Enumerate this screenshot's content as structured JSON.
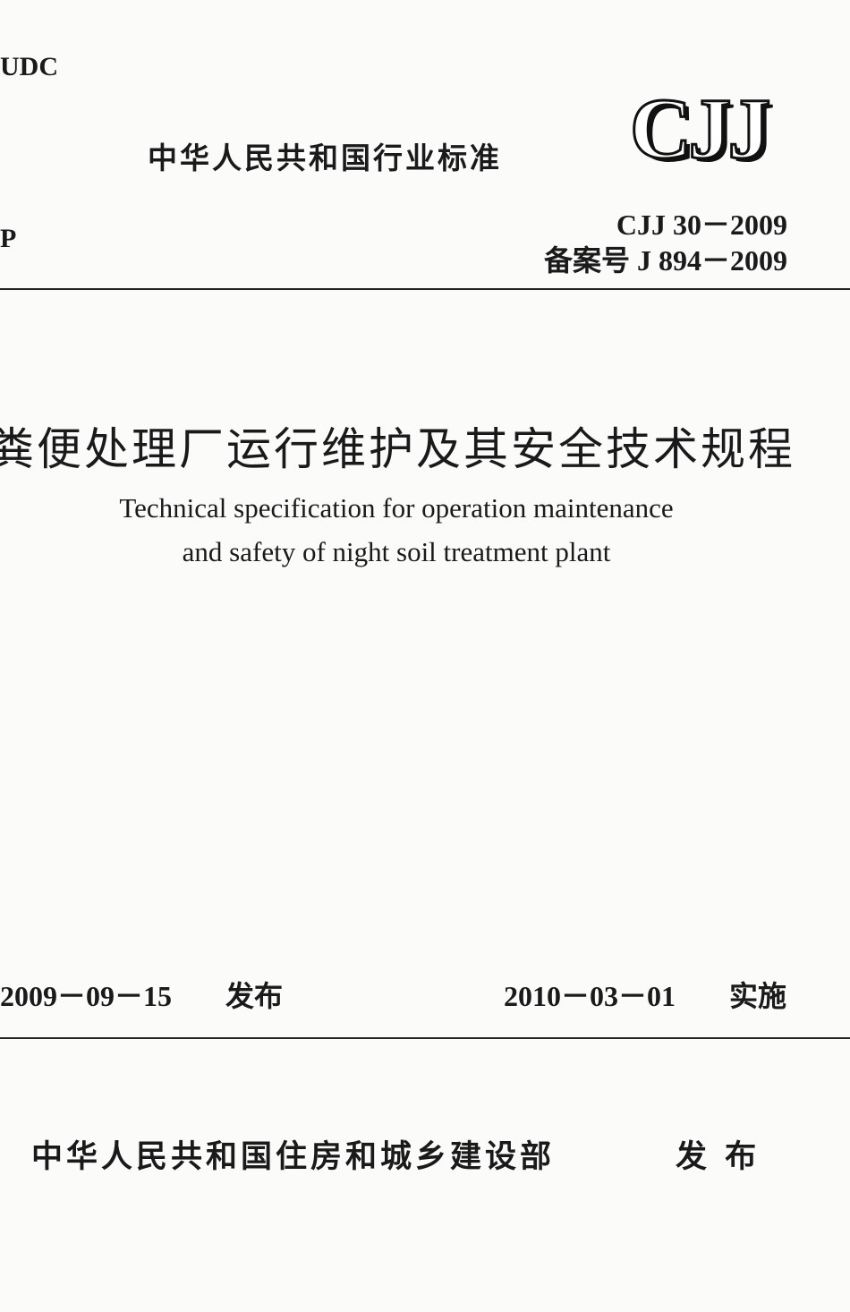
{
  "header": {
    "udc": "UDC",
    "category": "中华人民共和国行业标准",
    "logo": "CJJ",
    "classification": "P",
    "code": "CJJ 30－2009",
    "record": "备案号 J 894－2009"
  },
  "title": {
    "zh": "粪便处理厂运行维护及其安全技术规程",
    "en_lines": [
      "Technical specification for operation maintenance",
      "and safety of night soil treatment plant"
    ]
  },
  "dates": {
    "issued": {
      "date": "2009－09－15",
      "label": "发布"
    },
    "effective": {
      "date": "2010－03－01",
      "label": "实施"
    }
  },
  "footer": {
    "issuer": "中华人民共和国住房和城乡建设部",
    "label": "发 布"
  }
}
